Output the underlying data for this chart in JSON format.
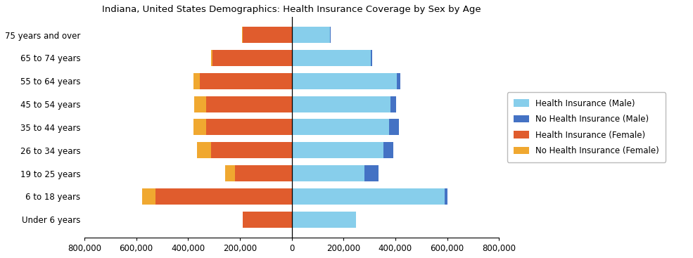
{
  "title": "Indiana, United States Demographics: Health Insurance Coverage by Sex by Age",
  "age_groups": [
    "Under 6 years",
    "6 to 18 years",
    "19 to 25 years",
    "26 to 34 years",
    "35 to 44 years",
    "45 to 54 years",
    "55 to 64 years",
    "65 to 74 years",
    "75 years and over"
  ],
  "health_ins_male": [
    248000,
    590000,
    280000,
    355000,
    375000,
    380000,
    405000,
    305000,
    148000
  ],
  "no_health_ins_male": [
    0,
    12000,
    55000,
    38000,
    38000,
    22000,
    15000,
    5000,
    3000
  ],
  "health_ins_female": [
    190000,
    525000,
    220000,
    310000,
    330000,
    330000,
    355000,
    305000,
    188000
  ],
  "no_health_ins_female": [
    0,
    52000,
    38000,
    55000,
    48000,
    45000,
    25000,
    5000,
    3000
  ],
  "color_health_male": "#87CEEB",
  "color_no_health_male": "#4472C4",
  "color_health_female": "#E05C2D",
  "color_no_health_female": "#F0A830",
  "xlim": [
    -800000,
    800000
  ],
  "xticks": [
    -800000,
    -600000,
    -400000,
    -200000,
    0,
    200000,
    400000,
    600000,
    800000
  ],
  "xtick_labels": [
    "800,000",
    "600,000",
    "400,000",
    "200,000",
    "0",
    "200,000",
    "400,000",
    "600,000",
    "800,000"
  ],
  "legend_labels": [
    "Health Insurance (Male)",
    "No Health Insurance (Male)",
    "Health Insurance (Female)",
    "No Health Insurance (Female)"
  ],
  "legend_colors": [
    "#87CEEB",
    "#4472C4",
    "#E05C2D",
    "#F0A830"
  ],
  "figwidth": 9.85,
  "figheight": 3.67,
  "bar_height": 0.7
}
